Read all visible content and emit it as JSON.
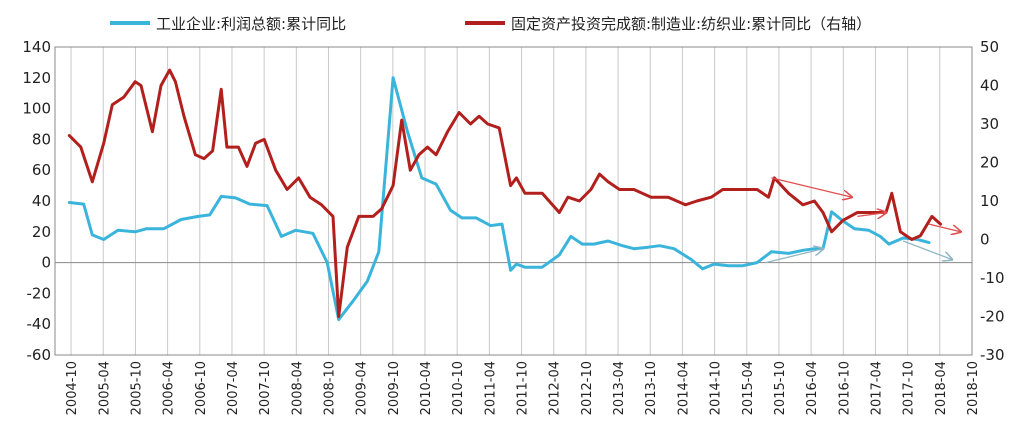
{
  "chart_data": {
    "type": "line",
    "legend_position": "top",
    "grid": {
      "vertical": true,
      "horizontal": false
    },
    "x_labels": [
      "2004-10",
      "2005-04",
      "2005-10",
      "2006-04",
      "2006-10",
      "2007-04",
      "2007-10",
      "2008-04",
      "2008-10",
      "2009-04",
      "2009-10",
      "2010-04",
      "2010-10",
      "2011-04",
      "2011-10",
      "2012-04",
      "2012-10",
      "2013-04",
      "2013-10",
      "2014-04",
      "2014-10",
      "2015-04",
      "2015-10",
      "2016-04",
      "2016-10",
      "2017-04",
      "2017-10",
      "2018-04",
      "2018-10"
    ],
    "y_left": {
      "min": -60,
      "max": 140,
      "step": 20,
      "ticks": [
        "140",
        "120",
        "100",
        "80",
        "60",
        "40",
        "20",
        "0",
        "-20",
        "-40",
        "-60"
      ]
    },
    "y_right": {
      "min": -30,
      "max": 50,
      "step": 10,
      "ticks": [
        "50",
        "40",
        "30",
        "20",
        "10",
        "0",
        "-10",
        "-20",
        "-30"
      ]
    },
    "series": [
      {
        "name": "工业企业:利润总额:累计同比",
        "axis": "left",
        "color": "#3bb4dc",
        "points": [
          [
            2004.75,
            39
          ],
          [
            2005.0,
            38
          ],
          [
            2005.15,
            18
          ],
          [
            2005.35,
            15
          ],
          [
            2005.6,
            21
          ],
          [
            2005.9,
            20
          ],
          [
            2006.1,
            22
          ],
          [
            2006.4,
            22
          ],
          [
            2006.7,
            28
          ],
          [
            2007.0,
            30
          ],
          [
            2007.2,
            31
          ],
          [
            2007.4,
            43
          ],
          [
            2007.65,
            42
          ],
          [
            2007.9,
            38
          ],
          [
            2008.2,
            37
          ],
          [
            2008.45,
            17
          ],
          [
            2008.7,
            21
          ],
          [
            2009.0,
            19
          ],
          [
            2009.25,
            0
          ],
          [
            2009.45,
            -37
          ],
          [
            2009.7,
            -25
          ],
          [
            2009.95,
            -12
          ],
          [
            2010.15,
            7
          ],
          [
            2010.4,
            120
          ],
          [
            2010.65,
            85
          ],
          [
            2010.9,
            55
          ],
          [
            2011.15,
            51
          ],
          [
            2011.4,
            34
          ],
          [
            2011.6,
            29
          ],
          [
            2011.85,
            29
          ],
          [
            2012.1,
            24
          ],
          [
            2012.3,
            25
          ],
          [
            2012.45,
            -5
          ],
          [
            2012.55,
            -1
          ],
          [
            2012.7,
            -3
          ],
          [
            2013.0,
            -3
          ],
          [
            2013.3,
            5
          ],
          [
            2013.5,
            17
          ],
          [
            2013.7,
            12
          ],
          [
            2013.9,
            12
          ],
          [
            2014.15,
            14
          ],
          [
            2014.4,
            11
          ],
          [
            2014.6,
            9
          ],
          [
            2014.85,
            10
          ],
          [
            2015.05,
            11
          ],
          [
            2015.3,
            9
          ],
          [
            2015.6,
            2
          ],
          [
            2015.8,
            -4
          ],
          [
            2016.0,
            -1
          ],
          [
            2016.25,
            -2
          ],
          [
            2016.5,
            -2
          ],
          [
            2016.75,
            0
          ],
          [
            2017.0,
            7
          ],
          [
            2017.3,
            6
          ],
          [
            2017.55,
            8
          ],
          [
            2017.75,
            9
          ],
          [
            2017.9,
            9
          ],
          [
            2018.05,
            33
          ],
          [
            2018.25,
            27
          ],
          [
            2018.45,
            22
          ],
          [
            2018.7,
            21
          ],
          [
            2018.9,
            17
          ],
          [
            2019.05,
            12
          ],
          [
            2019.3,
            16
          ],
          [
            2019.55,
            15
          ],
          [
            2019.75,
            13
          ]
        ]
      },
      {
        "name": "固定资产投资完成额:制造业:纺织业:累计同比（右轴）",
        "axis": "right",
        "color": "#b2201e",
        "points": [
          [
            2004.75,
            27
          ],
          [
            2004.95,
            24
          ],
          [
            2005.15,
            15
          ],
          [
            2005.35,
            25
          ],
          [
            2005.5,
            35
          ],
          [
            2005.7,
            37
          ],
          [
            2005.9,
            41
          ],
          [
            2006.0,
            40
          ],
          [
            2006.2,
            28
          ],
          [
            2006.35,
            40
          ],
          [
            2006.5,
            44
          ],
          [
            2006.6,
            41
          ],
          [
            2006.75,
            32
          ],
          [
            2006.95,
            22
          ],
          [
            2007.1,
            21
          ],
          [
            2007.25,
            23
          ],
          [
            2007.4,
            39
          ],
          [
            2007.5,
            24
          ],
          [
            2007.7,
            24
          ],
          [
            2007.85,
            19
          ],
          [
            2008.0,
            25
          ],
          [
            2008.15,
            26
          ],
          [
            2008.35,
            18
          ],
          [
            2008.55,
            13
          ],
          [
            2008.75,
            16
          ],
          [
            2008.95,
            11
          ],
          [
            2009.15,
            9
          ],
          [
            2009.35,
            6
          ],
          [
            2009.45,
            -20
          ],
          [
            2009.6,
            -2
          ],
          [
            2009.8,
            6
          ],
          [
            2010.05,
            6
          ],
          [
            2010.2,
            8
          ],
          [
            2010.4,
            14
          ],
          [
            2010.55,
            31
          ],
          [
            2010.7,
            18
          ],
          [
            2010.85,
            22
          ],
          [
            2011.0,
            24
          ],
          [
            2011.15,
            22
          ],
          [
            2011.35,
            28
          ],
          [
            2011.55,
            33
          ],
          [
            2011.75,
            30
          ],
          [
            2011.9,
            32
          ],
          [
            2012.05,
            30
          ],
          [
            2012.25,
            29
          ],
          [
            2012.45,
            14
          ],
          [
            2012.55,
            16
          ],
          [
            2012.7,
            12
          ],
          [
            2013.0,
            12
          ],
          [
            2013.3,
            7
          ],
          [
            2013.45,
            11
          ],
          [
            2013.65,
            10
          ],
          [
            2013.85,
            13
          ],
          [
            2014.0,
            17
          ],
          [
            2014.15,
            15
          ],
          [
            2014.35,
            13
          ],
          [
            2014.6,
            13
          ],
          [
            2014.9,
            11
          ],
          [
            2015.2,
            11
          ],
          [
            2015.5,
            9
          ],
          [
            2015.7,
            10
          ],
          [
            2015.95,
            11
          ],
          [
            2016.15,
            13
          ],
          [
            2016.45,
            13
          ],
          [
            2016.75,
            13
          ],
          [
            2016.95,
            11
          ],
          [
            2017.05,
            16
          ],
          [
            2017.3,
            12
          ],
          [
            2017.55,
            9
          ],
          [
            2017.75,
            10
          ],
          [
            2017.9,
            7
          ],
          [
            2018.05,
            2
          ],
          [
            2018.25,
            5
          ],
          [
            2018.5,
            7
          ],
          [
            2018.8,
            7
          ],
          [
            2019.0,
            7
          ],
          [
            2019.1,
            12
          ],
          [
            2019.25,
            2
          ],
          [
            2019.45,
            0
          ],
          [
            2019.6,
            1
          ],
          [
            2019.8,
            6
          ],
          [
            2019.95,
            4
          ]
        ]
      }
    ],
    "annotations": [
      {
        "color": "#e05050",
        "from": [
          2017.0,
          16
        ],
        "to": [
          2018.4,
          11
        ],
        "axis": "right"
      },
      {
        "color": "#e05050",
        "from": [
          2018.5,
          6
        ],
        "to": [
          2019.0,
          7
        ],
        "axis": "right"
      },
      {
        "color": "#e05050",
        "from": [
          2019.75,
          4
        ],
        "to": [
          2020.3,
          2
        ],
        "axis": "right"
      },
      {
        "color": "#8fb7c4",
        "from": [
          2016.9,
          0
        ],
        "to": [
          2017.9,
          9
        ],
        "axis": "left"
      },
      {
        "color": "#8fb7c4",
        "from": [
          2019.3,
          14
        ],
        "to": [
          2020.15,
          2
        ],
        "axis": "left"
      }
    ]
  }
}
